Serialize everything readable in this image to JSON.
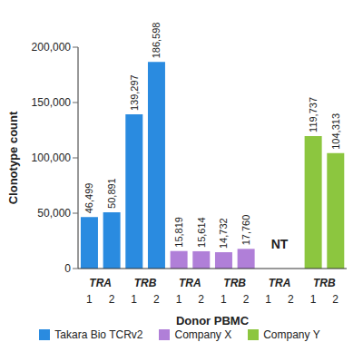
{
  "chart_data": {
    "type": "bar",
    "x_label": "Donor PBMC",
    "y_label": "Clonotype count",
    "categories": [
      "1",
      "2",
      "1",
      "2",
      "1",
      "2",
      "1",
      "2",
      "1",
      "2",
      "1",
      "2"
    ],
    "groups": [
      "TRA",
      "TRB",
      "TRA",
      "TRB",
      "TRA",
      "TRB"
    ],
    "series": [
      {
        "name": "Takara Bio TCRv2",
        "color": "#2a8be0",
        "values": [
          46499,
          50891,
          139297,
          186598,
          null,
          null,
          null,
          null,
          null,
          null,
          null,
          null
        ],
        "value_labels": [
          "46,499",
          "50,891",
          "139,297",
          "186,598",
          null,
          null,
          null,
          null,
          null,
          null,
          null,
          null
        ]
      },
      {
        "name": "Company X",
        "color": "#b07fd8",
        "values": [
          null,
          null,
          null,
          null,
          15819,
          15614,
          14732,
          17760,
          null,
          null,
          null,
          null
        ],
        "value_labels": [
          null,
          null,
          null,
          null,
          "15,819",
          "15,614",
          "14,732",
          "17,760",
          null,
          null,
          null,
          null
        ]
      },
      {
        "name": "Company Y",
        "color": "#8cc63f",
        "values": [
          null,
          null,
          null,
          null,
          null,
          null,
          null,
          null,
          null,
          null,
          119737,
          104313
        ],
        "value_labels": [
          null,
          null,
          null,
          null,
          null,
          null,
          null,
          null,
          null,
          null,
          "119,737",
          "104,313"
        ]
      }
    ],
    "ylim": [
      0,
      200000
    ],
    "yticks": [
      0,
      {
        "value": 50000,
        "label": "50,000"
      },
      {
        "value": 100000,
        "label": "100,000"
      },
      {
        "value": 150000,
        "label": "150,000"
      },
      {
        "value": 200000,
        "label": "200,000"
      }
    ],
    "data_labels": true,
    "legend": "bottom",
    "grid": false,
    "annotations": [
      {
        "text": "NT",
        "group": 4
      }
    ]
  }
}
